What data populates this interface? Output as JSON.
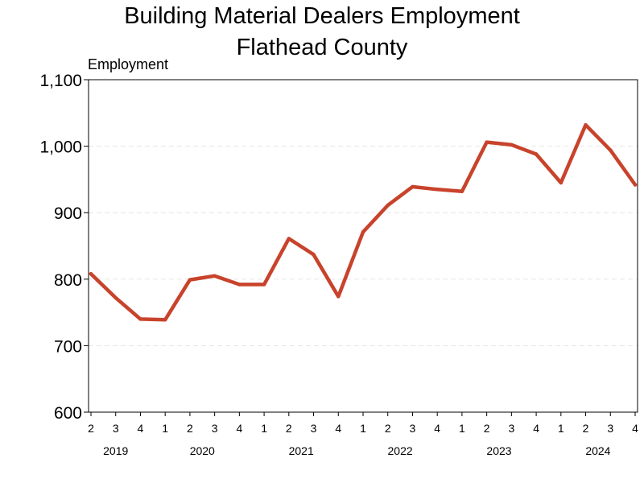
{
  "chart_data": {
    "type": "line",
    "title": "Building Material Dealers Employment",
    "subtitle": "Flathead County",
    "ylabel": "Employment",
    "ylim": [
      600,
      1100
    ],
    "yticks": [
      600,
      700,
      800,
      900,
      1000,
      1100
    ],
    "ytick_labels": [
      "600",
      "700",
      "800",
      "900",
      "1,000",
      "1,100"
    ],
    "grid": "horizontal dashed",
    "categories": [
      "2019 Q2",
      "2019 Q3",
      "2019 Q4",
      "2020 Q1",
      "2020 Q2",
      "2020 Q3",
      "2020 Q4",
      "2021 Q1",
      "2021 Q2",
      "2021 Q3",
      "2021 Q4",
      "2022 Q1",
      "2022 Q2",
      "2022 Q3",
      "2022 Q4",
      "2023 Q1",
      "2023 Q2",
      "2023 Q3",
      "2023 Q4",
      "2024 Q1",
      "2024 Q2",
      "2024 Q3",
      "2024 Q4"
    ],
    "quarter_labels": [
      "2",
      "3",
      "4",
      "1",
      "2",
      "3",
      "4",
      "1",
      "2",
      "3",
      "4",
      "1",
      "2",
      "3",
      "4",
      "1",
      "2",
      "3",
      "4",
      "1",
      "2",
      "3",
      "4"
    ],
    "years": [
      {
        "label": "2019",
        "first_index": 0,
        "last_index": 2
      },
      {
        "label": "2020",
        "first_index": 3,
        "last_index": 6
      },
      {
        "label": "2021",
        "first_index": 7,
        "last_index": 10
      },
      {
        "label": "2022",
        "first_index": 11,
        "last_index": 14
      },
      {
        "label": "2023",
        "first_index": 15,
        "last_index": 18
      },
      {
        "label": "2024",
        "first_index": 19,
        "last_index": 22
      }
    ],
    "series": [
      {
        "values": [
          808,
          772,
          740,
          739,
          799,
          805,
          792,
          792,
          861,
          837,
          774,
          871,
          911,
          939,
          935,
          932,
          1006,
          1002,
          988,
          945,
          1032,
          994,
          942
        ]
      }
    ],
    "colors": {
      "line": "#c8432b",
      "grid": "#e6e6e6",
      "axis": "#000000"
    }
  }
}
